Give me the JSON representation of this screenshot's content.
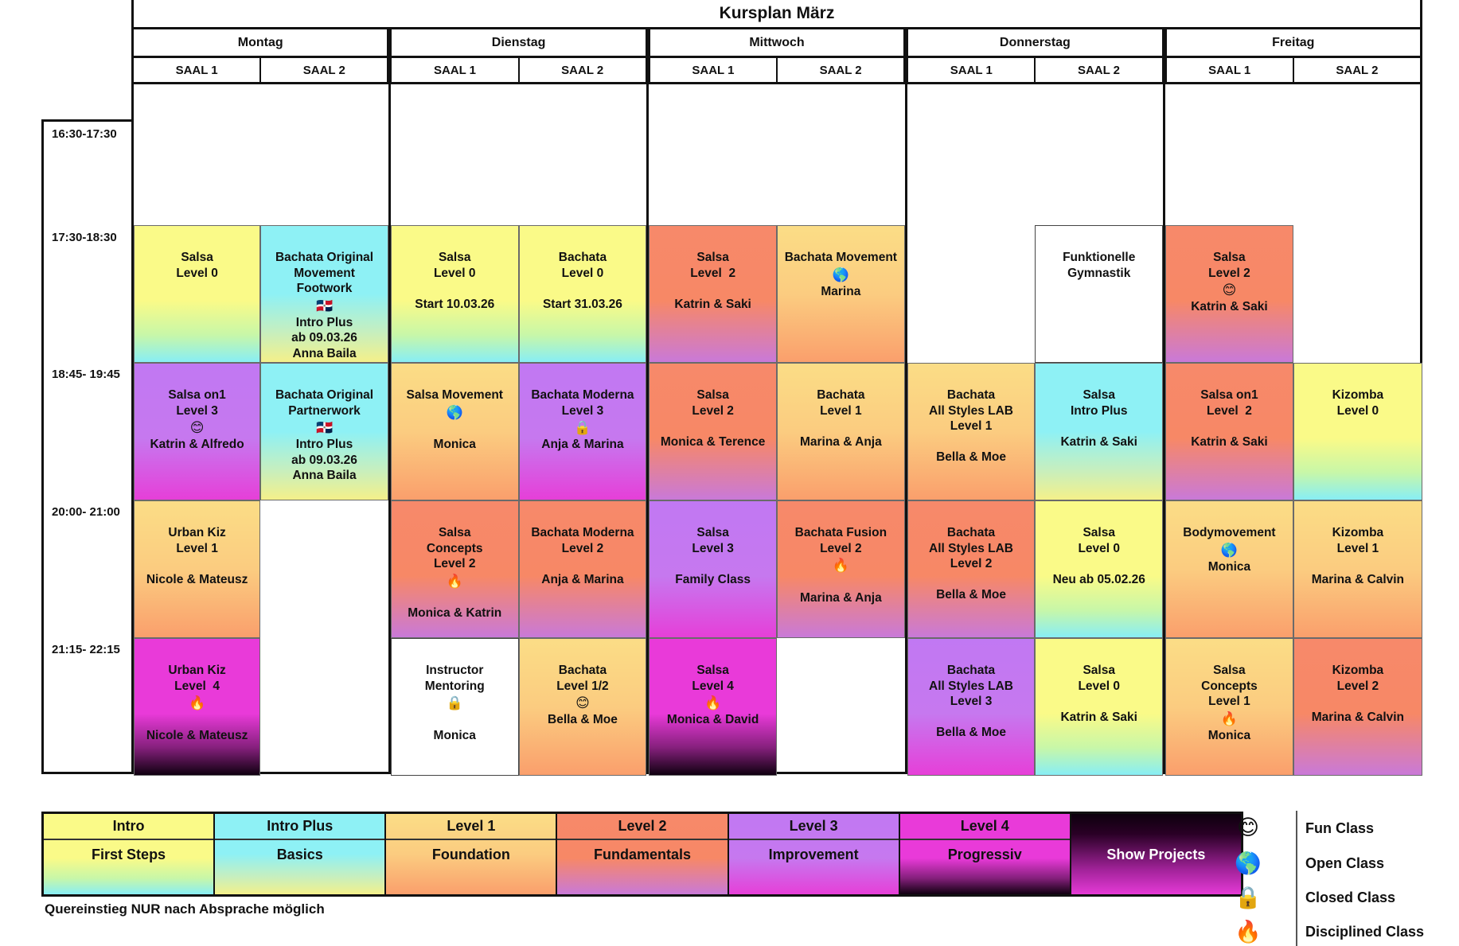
{
  "title": "Kursplan  März",
  "days": [
    {
      "name": "Montag",
      "saal1": "SAAL 1",
      "saal2": "SAAL 2"
    },
    {
      "name": "Dienstag",
      "saal1": "SAAL 1",
      "saal2": "SAAL 2"
    },
    {
      "name": "Mittwoch",
      "saal1": "SAAL 1",
      "saal2": "SAAL 2"
    },
    {
      "name": "Donnerstag",
      "saal1": "SAAL 1",
      "saal2": "SAAL 2"
    },
    {
      "name": "Freitag",
      "saal1": "SAAL 1",
      "saal2": "SAAL 2"
    }
  ],
  "times": [
    "16:30-17:30",
    "17:30-18:30",
    "18:45- 19:45",
    "20:00- 21:00",
    "21:15- 22:15"
  ],
  "icons": {
    "fun": "😊",
    "open": "🌎",
    "closed": "🔒",
    "disciplined": "🔥",
    "flag": "🇩🇴"
  },
  "courses": [
    {
      "day": 0,
      "col": 0,
      "slot": 1,
      "level": "intro",
      "lines": [
        "Salsa",
        "Level 0"
      ]
    },
    {
      "day": 0,
      "col": 1,
      "slot": 1,
      "level": "plus",
      "lines": [
        "Bachata Original",
        "Movement",
        "Footwork",
        {
          "icon": "flag"
        },
        "Intro Plus",
        "ab 09.03.26",
        "Anna Baila"
      ]
    },
    {
      "day": 0,
      "col": 0,
      "slot": 2,
      "level": "l3",
      "lines": [
        "Salsa on1",
        "Level 3",
        {
          "icon": "fun"
        },
        "Katrin & Alfredo"
      ]
    },
    {
      "day": 0,
      "col": 1,
      "slot": 2,
      "level": "plus",
      "lines": [
        "Bachata Original",
        "Partnerwork",
        {
          "icon": "flag"
        },
        "Intro Plus",
        "ab 09.03.26",
        "Anna Baila"
      ]
    },
    {
      "day": 0,
      "col": 0,
      "slot": 3,
      "level": "l1",
      "lines": [
        "Urban Kiz",
        "Level 1",
        "",
        "Nicole & Mateusz"
      ]
    },
    {
      "day": 0,
      "col": 0,
      "slot": 4,
      "level": "l4",
      "lines": [
        "Urban Kiz",
        "Level  4",
        {
          "icon": "disciplined"
        },
        "",
        "Nicole & Mateusz"
      ]
    },
    {
      "day": 1,
      "col": 0,
      "slot": 1,
      "level": "intro",
      "lines": [
        "Salsa",
        "Level 0",
        "",
        "Start 10.03.26"
      ]
    },
    {
      "day": 1,
      "col": 1,
      "slot": 1,
      "level": "intro",
      "lines": [
        "Bachata",
        "Level 0",
        "",
        "Start 31.03.26"
      ]
    },
    {
      "day": 1,
      "col": 0,
      "slot": 2,
      "level": "l1",
      "lines": [
        "Salsa Movement",
        {
          "icon": "open"
        },
        "",
        "Monica"
      ]
    },
    {
      "day": 1,
      "col": 1,
      "slot": 2,
      "level": "l3",
      "lines": [
        "Bachata Moderna",
        "Level 3",
        {
          "icon": "closed"
        },
        "Anja & Marina"
      ]
    },
    {
      "day": 1,
      "col": 0,
      "slot": 3,
      "level": "l2",
      "lines": [
        "Salsa",
        "Concepts",
        "Level 2",
        {
          "icon": "disciplined"
        },
        "",
        "Monica & Katrin"
      ]
    },
    {
      "day": 1,
      "col": 1,
      "slot": 3,
      "level": "l2",
      "lines": [
        "Bachata Moderna",
        "Level 2",
        "",
        "Anja & Marina"
      ]
    },
    {
      "day": 1,
      "col": 0,
      "slot": 4,
      "level": "white",
      "lines": [
        "Instructor",
        "Mentoring",
        {
          "icon": "closed"
        },
        "",
        "Monica"
      ]
    },
    {
      "day": 1,
      "col": 1,
      "slot": 4,
      "level": "l1",
      "lines": [
        "Bachata",
        "Level 1/2",
        {
          "icon": "fun"
        },
        "Bella & Moe"
      ]
    },
    {
      "day": 2,
      "col": 0,
      "slot": 1,
      "level": "l2",
      "lines": [
        "Salsa",
        "Level  2",
        "",
        "Katrin & Saki"
      ]
    },
    {
      "day": 2,
      "col": 1,
      "slot": 1,
      "level": "l1",
      "lines": [
        "Bachata Movement",
        {
          "icon": "open"
        },
        "Marina"
      ]
    },
    {
      "day": 2,
      "col": 0,
      "slot": 2,
      "level": "l2",
      "lines": [
        "Salsa",
        "Level 2",
        "",
        "Monica & Terence"
      ]
    },
    {
      "day": 2,
      "col": 1,
      "slot": 2,
      "level": "l1",
      "lines": [
        "Bachata",
        "Level 1",
        "",
        "Marina & Anja"
      ]
    },
    {
      "day": 2,
      "col": 0,
      "slot": 3,
      "level": "l3",
      "lines": [
        "Salsa",
        "Level 3",
        "",
        "Family Class"
      ]
    },
    {
      "day": 2,
      "col": 1,
      "slot": 3,
      "level": "l2",
      "lines": [
        "Bachata Fusion",
        "Level 2",
        {
          "icon": "disciplined"
        },
        "",
        "Marina & Anja"
      ]
    },
    {
      "day": 2,
      "col": 0,
      "slot": 4,
      "level": "l4",
      "lines": [
        "Salsa",
        "Level 4",
        {
          "icon": "disciplined"
        },
        "Monica & David"
      ]
    },
    {
      "day": 3,
      "col": 1,
      "slot": 1,
      "level": "white",
      "lines": [
        "Funktionelle",
        "Gymnastik"
      ]
    },
    {
      "day": 3,
      "col": 0,
      "slot": 2,
      "level": "l1",
      "lines": [
        "Bachata",
        "All Styles LAB",
        "Level 1",
        "",
        "Bella & Moe"
      ]
    },
    {
      "day": 3,
      "col": 1,
      "slot": 2,
      "level": "plus",
      "lines": [
        "Salsa",
        "Intro Plus",
        "",
        "Katrin & Saki"
      ]
    },
    {
      "day": 3,
      "col": 0,
      "slot": 3,
      "level": "l2",
      "lines": [
        "Bachata",
        "All Styles LAB",
        "Level 2",
        "",
        "Bella & Moe"
      ]
    },
    {
      "day": 3,
      "col": 1,
      "slot": 3,
      "level": "intro",
      "lines": [
        "Salsa",
        "Level 0",
        "",
        "Neu ab 05.02.26"
      ]
    },
    {
      "day": 3,
      "col": 0,
      "slot": 4,
      "level": "l3",
      "lines": [
        "Bachata",
        "All Styles LAB",
        "Level 3",
        "",
        "Bella & Moe"
      ]
    },
    {
      "day": 3,
      "col": 1,
      "slot": 4,
      "level": "intro",
      "lines": [
        "Salsa",
        "Level 0",
        "",
        "Katrin & Saki"
      ]
    },
    {
      "day": 4,
      "col": 0,
      "slot": 1,
      "level": "l2",
      "lines": [
        "Salsa",
        "Level 2",
        {
          "icon": "fun"
        },
        "Katrin & Saki"
      ]
    },
    {
      "day": 4,
      "col": 0,
      "slot": 2,
      "level": "l2",
      "lines": [
        "Salsa on1",
        "Level  2",
        "",
        "Katrin & Saki"
      ]
    },
    {
      "day": 4,
      "col": 1,
      "slot": 2,
      "level": "intro",
      "lines": [
        "Kizomba",
        "Level 0"
      ]
    },
    {
      "day": 4,
      "col": 0,
      "slot": 3,
      "level": "l1",
      "lines": [
        "Bodymovement",
        {
          "icon": "open"
        },
        "Monica"
      ]
    },
    {
      "day": 4,
      "col": 1,
      "slot": 3,
      "level": "l1",
      "lines": [
        "Kizomba",
        "Level 1",
        "",
        "Marina & Calvin"
      ]
    },
    {
      "day": 4,
      "col": 0,
      "slot": 4,
      "level": "l1",
      "lines": [
        "Salsa",
        "Concepts",
        "Level 1",
        {
          "icon": "disciplined"
        },
        "Monica"
      ]
    },
    {
      "day": 4,
      "col": 1,
      "slot": 4,
      "level": "l2",
      "lines": [
        "Kizomba",
        "Level 2",
        "",
        "Marina & Calvin"
      ]
    }
  ],
  "legend": [
    {
      "key": "intro",
      "top": "Intro",
      "bottom": "First Steps"
    },
    {
      "key": "plus",
      "top": "Intro Plus",
      "bottom": "Basics"
    },
    {
      "key": "l1",
      "top": "Level 1",
      "bottom": "Foundation"
    },
    {
      "key": "l2",
      "top": "Level 2",
      "bottom": "Fundamentals"
    },
    {
      "key": "l3",
      "top": "Level 3",
      "bottom": "Improvement"
    },
    {
      "key": "l4",
      "top": "Level 4",
      "bottom": "Progressiv"
    },
    {
      "key": "show",
      "top": "",
      "bottom": "Show Projects"
    }
  ],
  "note": "Quereinstieg NUR nach Absprache möglich",
  "icon_legend": [
    {
      "icon": "fun",
      "label": "Fun Class"
    },
    {
      "icon": "open",
      "label": "Open Class"
    },
    {
      "icon": "closed",
      "label": "Closed Class"
    },
    {
      "icon": "disciplined",
      "label": "Disciplined Class"
    }
  ]
}
